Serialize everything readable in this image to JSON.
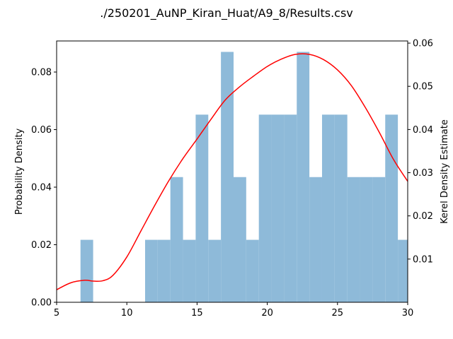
{
  "chart_data": {
    "type": "bar",
    "title": "./250201_AuNP_Kiran_Huat/A9_8/Results.csv",
    "xlabel": "",
    "ylabel": "Probability Density",
    "ylabel_right": "Kerel Density Estimate",
    "xlim": [
      5,
      30
    ],
    "ylim": [
      0,
      0.0908
    ],
    "ylim_right": [
      0,
      0.0605
    ],
    "grid": false,
    "x_ticks": [
      5,
      10,
      15,
      20,
      25,
      30
    ],
    "x_tick_labels": [
      "5",
      "10",
      "15",
      "20",
      "25",
      "30"
    ],
    "y_ticks": [
      0.0,
      0.02,
      0.04,
      0.06,
      0.08
    ],
    "y_tick_labels": [
      "0.00",
      "0.02",
      "0.04",
      "0.06",
      "0.08"
    ],
    "y_ticks_right": [
      0.01,
      0.02,
      0.03,
      0.04,
      0.05,
      0.06
    ],
    "y_tick_labels_right": [
      "0.01",
      "0.02",
      "0.03",
      "0.04",
      "0.05",
      "0.06"
    ],
    "series": [
      {
        "type": "histogram",
        "color": "#8ebad9",
        "bins": [
          {
            "x0": 6.7,
            "x1": 7.6,
            "density": 0.0217
          },
          {
            "x0": 11.3,
            "x1": 12.2,
            "density": 0.0217
          },
          {
            "x0": 12.2,
            "x1": 13.1,
            "density": 0.0217
          },
          {
            "x0": 13.1,
            "x1": 14.0,
            "density": 0.0435
          },
          {
            "x0": 14.0,
            "x1": 14.9,
            "density": 0.0217
          },
          {
            "x0": 14.9,
            "x1": 15.8,
            "density": 0.0652
          },
          {
            "x0": 15.8,
            "x1": 16.7,
            "density": 0.0217
          },
          {
            "x0": 16.7,
            "x1": 17.6,
            "density": 0.087
          },
          {
            "x0": 17.6,
            "x1": 18.5,
            "density": 0.0435
          },
          {
            "x0": 18.5,
            "x1": 19.4,
            "density": 0.0217
          },
          {
            "x0": 19.4,
            "x1": 20.3,
            "density": 0.0652
          },
          {
            "x0": 20.3,
            "x1": 21.2,
            "density": 0.0652
          },
          {
            "x0": 21.2,
            "x1": 22.1,
            "density": 0.0652
          },
          {
            "x0": 22.1,
            "x1": 23.0,
            "density": 0.087
          },
          {
            "x0": 23.0,
            "x1": 23.9,
            "density": 0.0435
          },
          {
            "x0": 23.9,
            "x1": 24.8,
            "density": 0.0652
          },
          {
            "x0": 24.8,
            "x1": 25.7,
            "density": 0.0652
          },
          {
            "x0": 25.7,
            "x1": 26.6,
            "density": 0.0435
          },
          {
            "x0": 26.6,
            "x1": 27.5,
            "density": 0.0435
          },
          {
            "x0": 27.5,
            "x1": 28.4,
            "density": 0.0435
          },
          {
            "x0": 28.4,
            "x1": 29.3,
            "density": 0.0652
          },
          {
            "x0": 29.3,
            "x1": 30.2,
            "density": 0.0217
          }
        ]
      },
      {
        "type": "line",
        "axis": "right",
        "color": "#ff0000",
        "x": [
          5.0,
          6.0,
          7.0,
          7.6,
          8.3,
          9.0,
          10.0,
          11.0,
          12.0,
          13.0,
          14.0,
          15.0,
          16.0,
          17.0,
          18.0,
          19.0,
          20.0,
          21.0,
          22.0,
          23.0,
          24.0,
          25.0,
          26.0,
          27.0,
          28.0,
          29.0,
          30.0
        ],
        "y": [
          0.0029,
          0.0045,
          0.0051,
          0.0049,
          0.005,
          0.0062,
          0.0105,
          0.0165,
          0.0225,
          0.0282,
          0.0333,
          0.0378,
          0.0424,
          0.0468,
          0.0498,
          0.0523,
          0.0546,
          0.0563,
          0.0574,
          0.0574,
          0.0562,
          0.0538,
          0.0501,
          0.045,
          0.0392,
          0.033,
          0.028
        ]
      }
    ]
  }
}
